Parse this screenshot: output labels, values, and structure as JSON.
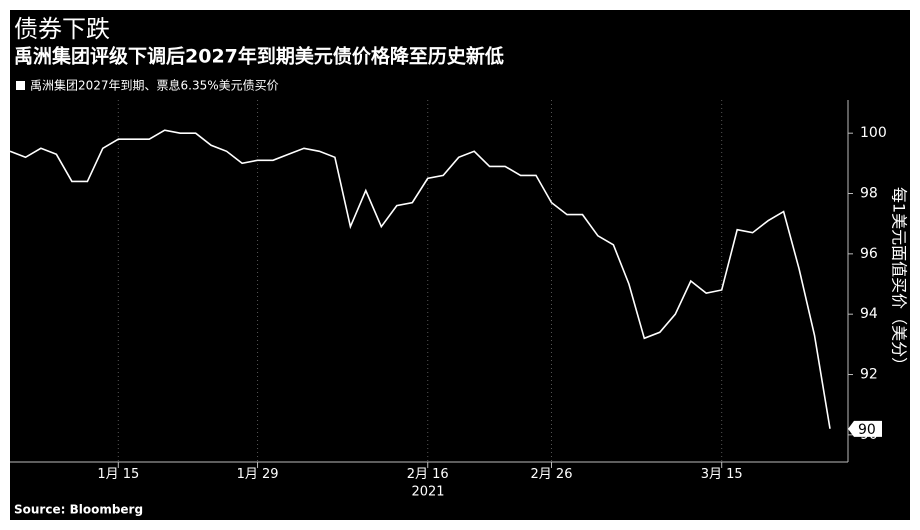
{
  "chart_data": {
    "type": "line",
    "title": "债券下跌",
    "subtitle": "禹洲集团评级下调后2027年到期美元债价格降至历史新低",
    "y_label": "每1美元面值买价（美分）",
    "source": "Source: Bloomberg",
    "year_label": "2021",
    "x": [
      "2021-01-06",
      "2021-01-07",
      "2021-01-08",
      "2021-01-11",
      "2021-01-12",
      "2021-01-13",
      "2021-01-14",
      "2021-01-15",
      "2021-01-19",
      "2021-01-20",
      "2021-01-21",
      "2021-01-22",
      "2021-01-25",
      "2021-01-26",
      "2021-01-27",
      "2021-01-28",
      "2021-01-29",
      "2021-02-01",
      "2021-02-02",
      "2021-02-03",
      "2021-02-04",
      "2021-02-05",
      "2021-02-08",
      "2021-02-09",
      "2021-02-10",
      "2021-02-11",
      "2021-02-12",
      "2021-02-16",
      "2021-02-17",
      "2021-02-18",
      "2021-02-19",
      "2021-02-22",
      "2021-02-23",
      "2021-02-24",
      "2021-02-25",
      "2021-02-26",
      "2021-03-01",
      "2021-03-02",
      "2021-03-03",
      "2021-03-04",
      "2021-03-05",
      "2021-03-08",
      "2021-03-09",
      "2021-03-10",
      "2021-03-11",
      "2021-03-12",
      "2021-03-15",
      "2021-03-16",
      "2021-03-17",
      "2021-03-18",
      "2021-03-19",
      "2021-03-22",
      "2021-03-23",
      "2021-03-24"
    ],
    "series": [
      {
        "name": "禹洲集团2027年到期、票息6.35%美元债买价",
        "color": "#ffffff",
        "values": [
          99.4,
          99.2,
          99.5,
          99.3,
          98.4,
          98.4,
          99.5,
          99.8,
          99.8,
          99.8,
          100.1,
          100.0,
          100.0,
          99.6,
          99.4,
          99.0,
          99.1,
          99.1,
          99.3,
          99.5,
          99.4,
          99.2,
          96.9,
          98.1,
          96.9,
          97.6,
          97.7,
          98.5,
          98.6,
          99.2,
          99.4,
          98.9,
          98.9,
          98.6,
          98.6,
          97.7,
          97.3,
          97.3,
          96.6,
          96.3,
          95.0,
          93.2,
          93.4,
          94.0,
          95.1,
          94.7,
          94.8,
          96.8,
          96.7,
          97.1,
          97.4,
          95.5,
          93.3,
          90.2
        ]
      }
    ],
    "last_value_label": "90",
    "ylim": [
      89.1,
      101.1
    ],
    "yticks": [
      90,
      92,
      94,
      96,
      98,
      100
    ],
    "xticks": [
      {
        "value": "2021-01-15",
        "label": "1月 15"
      },
      {
        "value": "2021-01-29",
        "label": "1月 29"
      },
      {
        "value": "2021-02-16",
        "label": "2月 16"
      },
      {
        "value": "2021-02-26",
        "label": "2月 26"
      },
      {
        "value": "2021-03-15",
        "label": "3月 15"
      }
    ],
    "grid": "x",
    "background": "#000000"
  }
}
